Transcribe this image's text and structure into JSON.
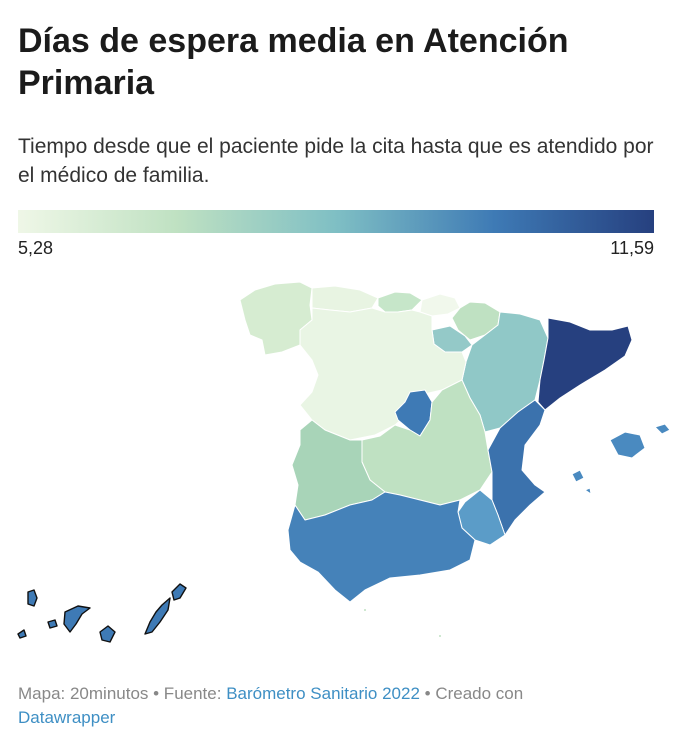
{
  "header": {
    "title": "Días de espera media en Atención Primaria",
    "subtitle": "Tiempo desde que el paciente pide la cita hasta que es atendido por el médico de familia."
  },
  "legend": {
    "min_label": "5,28",
    "max_label": "11,59",
    "min_value": 5.28,
    "max_value": 11.59,
    "colors": [
      "#eff7e7",
      "#bfe1c2",
      "#7fbfc4",
      "#3e7ab5",
      "#26407f"
    ]
  },
  "map": {
    "regions": [
      "Galicia",
      "Asturias",
      "Cantabria",
      "País Vasco",
      "Navarra",
      "La Rioja",
      "Aragón",
      "Cataluña",
      "Castilla y León",
      "Madrid",
      "Castilla-La Mancha",
      "Extremadura",
      "Comunidad Valenciana",
      "Murcia",
      "Andalucía",
      "Islas Baleares",
      "Canarias",
      "Ceuta",
      "Melilla"
    ]
  },
  "footer": {
    "prefix": "Mapa: 20minutos • Fuente: ",
    "source_link": "Barómetro Sanitario 2022",
    "middle": " • Creado con ",
    "tool_link": "Datawrapper"
  }
}
